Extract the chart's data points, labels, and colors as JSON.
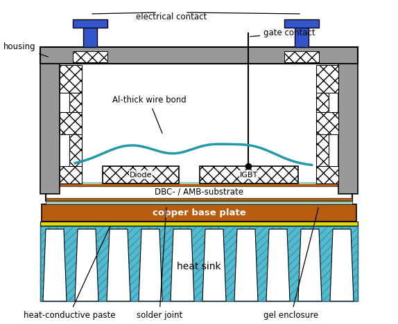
{
  "fig_w": 5.74,
  "fig_h": 4.68,
  "dpi": 100,
  "colors": {
    "bg": "#ffffff",
    "gray": "#999999",
    "gray_dark": "#777777",
    "blue": "#3355cc",
    "copper": "#b85c10",
    "heat_sink": "#55bbcc",
    "heat_sink_stripe": "#3399bb",
    "yellow": "#dddd00",
    "green_solder": "#99ccbb",
    "wire_bond": "#2299aa",
    "black": "#000000",
    "white": "#ffffff"
  },
  "labels": {
    "housing": "housing",
    "electrical_contact": "electrical contact",
    "gate_contact": "gate contact",
    "al_wire": "Al-thick wire bond",
    "diode": "Diode",
    "igbt": "IGBT",
    "dbc": "DBC- / AMB-substrate",
    "copper_plate": "copper base plate",
    "heat_sink": "heat sink",
    "heat_paste": "heat-conductive paste",
    "solder": "solder joint",
    "gel": "gel enclosure"
  }
}
